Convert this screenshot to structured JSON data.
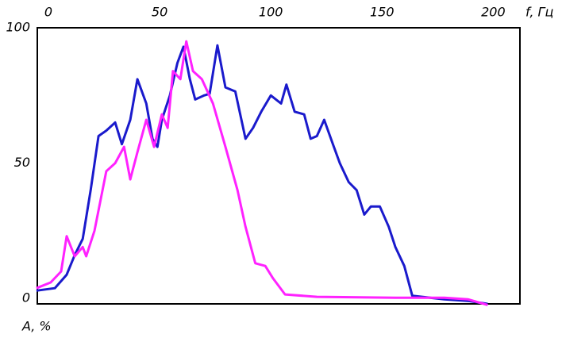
{
  "chart_data": {
    "type": "line",
    "x_label": "f, Гц",
    "y_label": "A, %",
    "xlim": [
      -5,
      212
    ],
    "ylim": [
      -2,
      100
    ],
    "xticks": [
      0,
      50,
      100,
      150,
      200
    ],
    "yticks": [
      0,
      50,
      100
    ],
    "grid": false,
    "series": [
      {
        "color": "#1a1acc",
        "x": [
          -5.4,
          2.9,
          8.2,
          11.8,
          15.4,
          19,
          22.5,
          26,
          30,
          33,
          36.8,
          40,
          44,
          46.8,
          49,
          51,
          54.6,
          58,
          60.7,
          63.6,
          66,
          70,
          72.5,
          76,
          79.6,
          84,
          88.6,
          92,
          95.7,
          100,
          104.6,
          107,
          110.7,
          115,
          117.9,
          120.7,
          124,
          127.9,
          131,
          135,
          138.6,
          142,
          145,
          149,
          153,
          156,
          160,
          163.6,
          178,
          188.6,
          197.5
        ],
        "values": [
          2.9,
          3.8,
          8.8,
          16,
          22,
          40,
          60,
          62,
          65,
          57,
          66,
          81,
          72,
          59,
          56,
          66,
          75,
          87,
          93,
          81,
          73.5,
          75,
          75.6,
          93.5,
          78,
          76.5,
          59,
          63,
          69,
          75,
          72,
          79,
          69,
          68,
          59,
          60,
          66,
          57,
          50,
          43,
          40,
          31,
          34,
          34,
          26.5,
          19,
          12,
          1,
          -0.3,
          -0.9,
          -2
        ]
      },
      {
        "color": "#ff22ff",
        "x": [
          -5.4,
          1,
          5.7,
          8.2,
          11.8,
          15.4,
          17,
          20.7,
          26,
          30,
          34,
          36.8,
          40,
          44,
          47.5,
          51,
          53.6,
          56,
          59.3,
          62,
          65,
          69,
          74,
          79.6,
          85,
          88.6,
          93,
          97.5,
          101,
          106.4,
          120.7,
          156,
          178,
          188.6,
          197.5
        ],
        "values": [
          3.8,
          5.9,
          10,
          23,
          15.6,
          19,
          15.6,
          25,
          47,
          50,
          56,
          44,
          54,
          66,
          56,
          68,
          63,
          84,
          81,
          95,
          84,
          81,
          72,
          56,
          40,
          26.5,
          13,
          12,
          7.4,
          1.5,
          0.6,
          0.3,
          0.3,
          -0.3,
          -2.4
        ]
      }
    ]
  }
}
